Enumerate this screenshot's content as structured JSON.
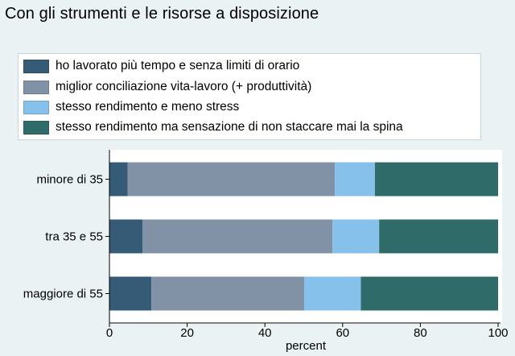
{
  "chart_data": {
    "type": "bar",
    "orientation": "horizontal",
    "stacked": true,
    "title": "Con gli strumenti e le risorse a disposizione",
    "categories": [
      "minore di 35",
      "tra 35 e 55",
      "maggiore di 55"
    ],
    "series": [
      {
        "name": "ho lavorato più tempo e senza limiti di orario",
        "color": "#365b77",
        "values": [
          4.7,
          8.5,
          10.8
        ]
      },
      {
        "name": "miglior conciliazione vita-lavoro (+ produttività)",
        "color": "#8192a6",
        "values": [
          53.3,
          48.9,
          39.3
        ]
      },
      {
        "name": "stesso rendimento e meno stress",
        "color": "#85c1eb",
        "values": [
          10.3,
          12.0,
          14.6
        ]
      },
      {
        "name": "stesso rendimento ma sensazione di non staccare mai la spina",
        "color": "#2e6b69",
        "values": [
          31.7,
          30.6,
          35.3
        ]
      }
    ],
    "xlabel": "percent",
    "xlim": [
      0,
      100
    ],
    "xticks": [
      0,
      20,
      40,
      60,
      80,
      100
    ],
    "legend_position": "top",
    "grid": false
  }
}
